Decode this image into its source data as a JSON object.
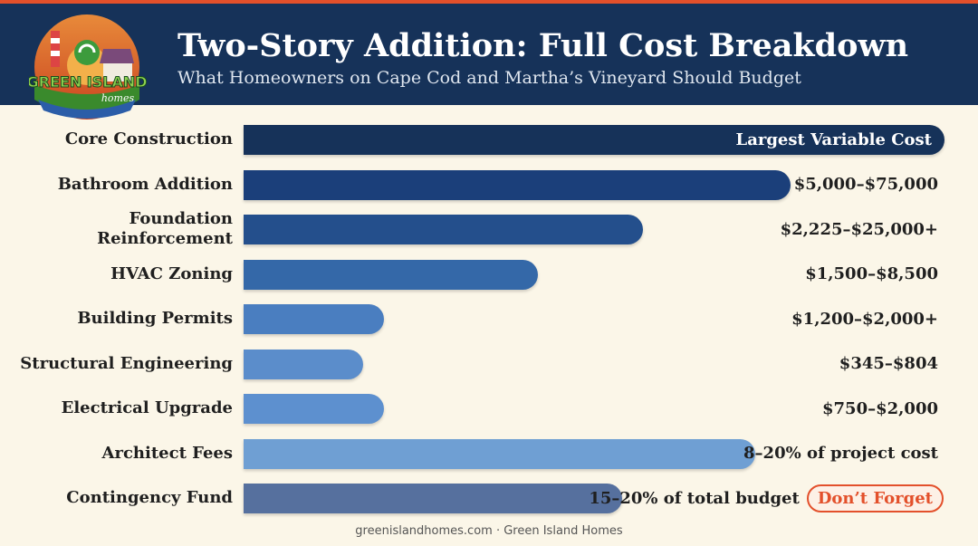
{
  "header": {
    "title": "Two-Story Addition: Full Cost Breakdown",
    "subtitle": "What Homeowners on Cape Cod and Martha’s Vineyard Should Budget"
  },
  "logo": {
    "text_line1": "GREEN ISLAND",
    "text_line2": "homes"
  },
  "colors": {
    "header_bg": "#163259",
    "accent": "#e3502b",
    "background": "#fbf6e8"
  },
  "chart_data": {
    "type": "bar",
    "orientation": "horizontal",
    "title": "Two-Story Addition: Full Cost Breakdown",
    "subtitle": "What Homeowners on Cape Cod and Martha’s Vineyard Should Budget",
    "axis": "none",
    "grid": false,
    "categories": [
      "Core Construction",
      "Bathroom Addition",
      "Foundation\nReinforcement",
      "HVAC Zoning",
      "Building Permits",
      "Structural Engineering",
      "Electrical Upgrade",
      "Architect Fees",
      "Contingency Fund"
    ],
    "values": [
      1.0,
      0.78,
      0.57,
      0.42,
      0.2,
      0.17,
      0.2,
      0.73,
      0.54
    ],
    "value_labels": [
      "Largest Variable Cost",
      "$5,000–$75,000",
      "$2,225–$25,000+",
      "$1,500–$8,500",
      "$1,200–$2,000+",
      "$345–$804",
      "$750–$2,000",
      "8–20% of project cost",
      "15–20% of total budget"
    ],
    "bar_colors": [
      "#163259",
      "#1b3f7a",
      "#244f8c",
      "#3468a8",
      "#4a7ec0",
      "#5b8dcb",
      "#5d90cf",
      "#6f9fd3",
      "#56709e"
    ],
    "callout": {
      "category": "Contingency Fund",
      "text": "Don’t Forget"
    }
  },
  "footer": {
    "text": "greenislandhomes.com · Green Island Homes"
  }
}
